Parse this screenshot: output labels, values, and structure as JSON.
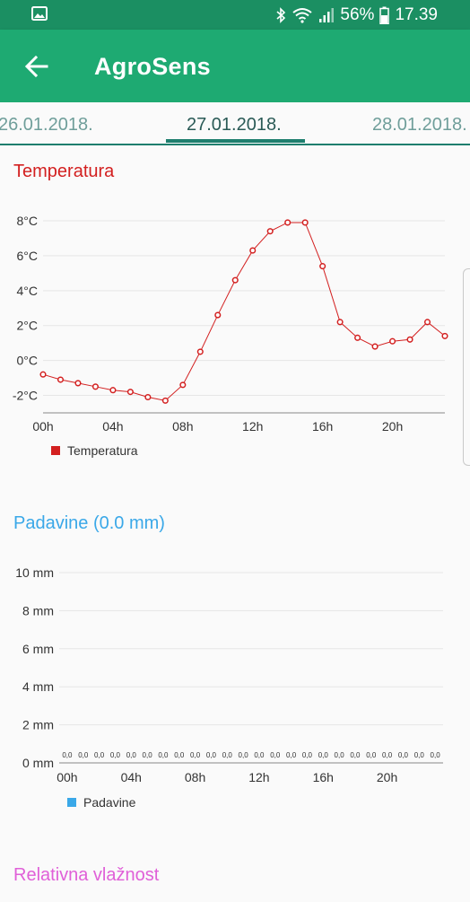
{
  "status_bar": {
    "time": "17.39",
    "battery_percent": "56%",
    "icons": [
      "image-icon",
      "bluetooth-icon",
      "wifi-icon",
      "signal-icon",
      "battery-icon"
    ]
  },
  "app_bar": {
    "title": "AgroSens",
    "back_icon": "arrow-left-icon",
    "color": "#1eaa72"
  },
  "date_tabs": [
    {
      "label": "26.01.2018.",
      "active": false
    },
    {
      "label": "27.01.2018.",
      "active": true
    },
    {
      "label": "28.01.2018.",
      "active": false
    }
  ],
  "sections": {
    "temperature_title": "Temperatura",
    "precip_title": "Padavine (0.0 mm)",
    "humidity_title": "Relativna vlažnost"
  },
  "chart_data": [
    {
      "type": "line",
      "title": "Temperatura",
      "x_tick_labels": [
        "00h",
        "04h",
        "08h",
        "12h",
        "16h",
        "20h"
      ],
      "y_tick_labels": [
        "-2°C",
        "0°C",
        "2°C",
        "4°C",
        "6°C",
        "8°C"
      ],
      "ylim": [
        -3,
        8
      ],
      "x": [
        0,
        1,
        2,
        3,
        4,
        5,
        6,
        7,
        8,
        9,
        10,
        11,
        12,
        13,
        14,
        15,
        16,
        17,
        18,
        19,
        20,
        21,
        22,
        23
      ],
      "series": [
        {
          "name": "Temperatura",
          "color": "#d32020",
          "values": [
            -0.8,
            -1.1,
            -1.3,
            -1.5,
            -1.7,
            -1.8,
            -2.1,
            -2.3,
            -1.4,
            0.5,
            2.6,
            4.6,
            6.3,
            7.4,
            7.9,
            7.9,
            5.4,
            2.2,
            1.3,
            0.8,
            1.1,
            1.2,
            2.2,
            1.4
          ]
        }
      ],
      "legend": "bottom-left",
      "grid": true,
      "title_color": "#d32020"
    },
    {
      "type": "bar",
      "title": "Padavine (0.0 mm)",
      "x_tick_labels": [
        "00h",
        "04h",
        "08h",
        "12h",
        "16h",
        "20h"
      ],
      "y_tick_labels": [
        "0 mm",
        "2 mm",
        "4 mm",
        "6 mm",
        "8 mm",
        "10 mm"
      ],
      "ylim": [
        0,
        10
      ],
      "x": [
        0,
        1,
        2,
        3,
        4,
        5,
        6,
        7,
        8,
        9,
        10,
        11,
        12,
        13,
        14,
        15,
        16,
        17,
        18,
        19,
        20,
        21,
        22,
        23
      ],
      "series": [
        {
          "name": "Padavine",
          "color": "#3aa8e8",
          "values": [
            0,
            0,
            0,
            0,
            0,
            0,
            0,
            0,
            0,
            0,
            0,
            0,
            0,
            0,
            0,
            0,
            0,
            0,
            0,
            0,
            0,
            0,
            0,
            0
          ]
        }
      ],
      "data_label": "0,0",
      "legend": "bottom-left",
      "grid": true,
      "title_color": "#3aa8e8"
    }
  ],
  "humidity_title_color": "#e060d8"
}
